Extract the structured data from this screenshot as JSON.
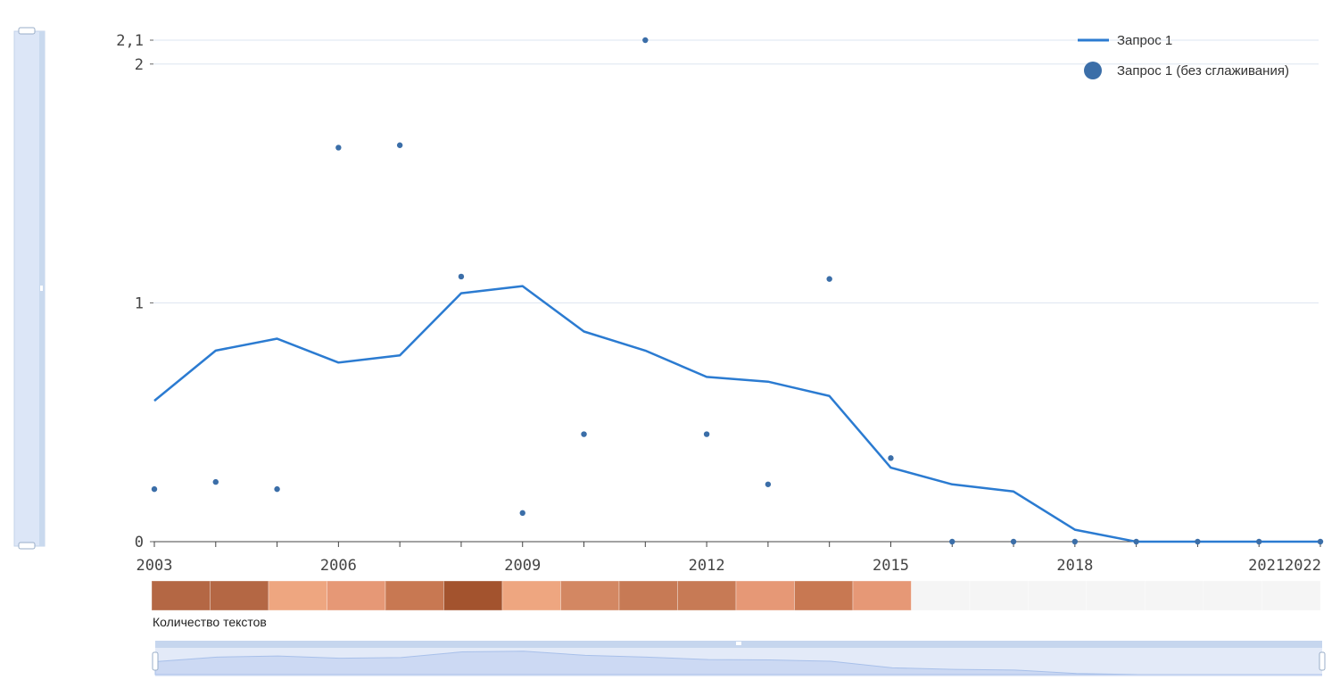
{
  "chart_data": {
    "type": "line",
    "x": [
      2003,
      2004,
      2005,
      2006,
      2007,
      2008,
      2009,
      2010,
      2011,
      2012,
      2013,
      2014,
      2015,
      2016,
      2017,
      2018,
      2019,
      2020,
      2021,
      2022
    ],
    "series": [
      {
        "name": "Запрос 1",
        "kind": "line",
        "color": "#2b7bd1",
        "values": [
          0.59,
          0.8,
          0.85,
          0.75,
          0.78,
          1.04,
          1.07,
          0.88,
          0.8,
          0.69,
          0.67,
          0.61,
          0.31,
          0.24,
          0.21,
          0.05,
          0.0,
          0.0,
          0.0,
          0.0
        ]
      },
      {
        "name": "Запрос 1 (без сглаживания)",
        "kind": "scatter",
        "color": "#3b6ea8",
        "values": [
          0.22,
          0.25,
          0.22,
          1.65,
          1.66,
          1.11,
          0.12,
          0.45,
          2.1,
          0.45,
          0.24,
          1.1,
          0.35,
          0.0,
          0.0,
          0.0,
          0.0,
          0.0,
          0.0,
          0.0
        ]
      }
    ],
    "yticks": [
      "0",
      "1",
      "2",
      "2,1"
    ],
    "ytick_values": [
      0,
      1,
      2,
      2.1
    ],
    "xticks": [
      "2003",
      "2006",
      "2009",
      "2012",
      "2015",
      "2018",
      "20212022"
    ],
    "ylim": [
      0,
      2.1
    ],
    "grid": true,
    "legend_position": "top-right"
  },
  "counts_strip": {
    "label": "Количество текстов",
    "colors": [
      "#b46744",
      "#b46744",
      "#eea680",
      "#e69876",
      "#c87852",
      "#a3532e",
      "#eea680",
      "#d38762",
      "#c77a55",
      "#c77a55",
      "#e69876",
      "#c87852",
      "#e69876",
      "#f5f5f5",
      "#f5f5f5",
      "#f5f5f5",
      "#f5f5f5",
      "#f5f5f5",
      "#f5f5f5",
      "#f5f5f5"
    ]
  }
}
